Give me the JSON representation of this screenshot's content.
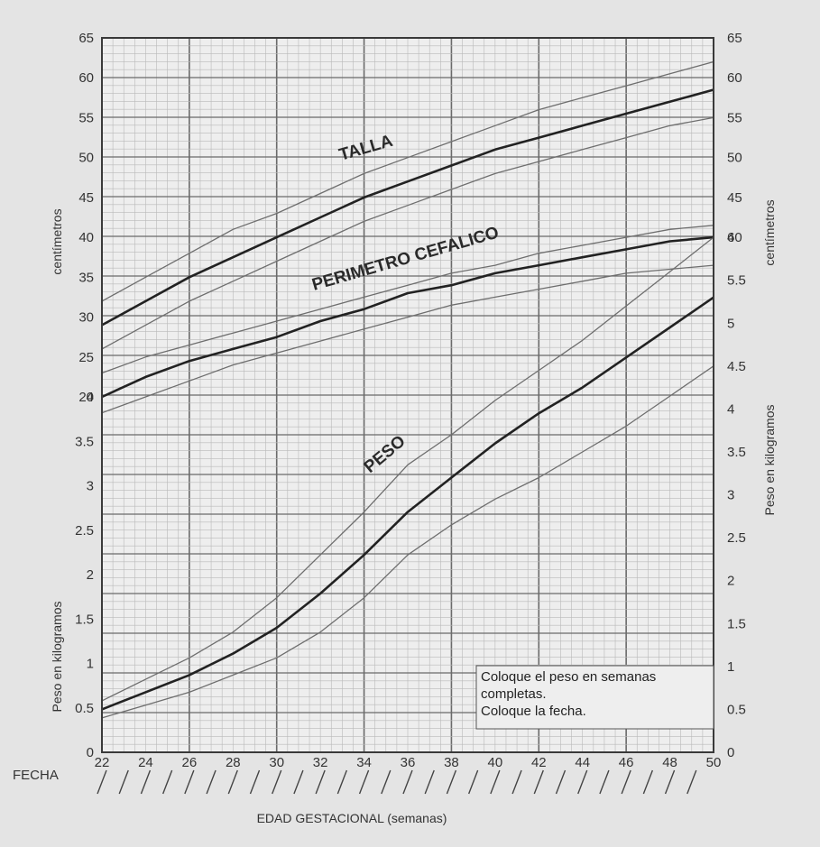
{
  "chart_data": {
    "type": "line",
    "title": "",
    "xlabel": "EDAD GESTACIONAL (semanas)",
    "x_row_label": "FECHA",
    "xlim": [
      22,
      50
    ],
    "x_ticks": [
      "22",
      "24",
      "26",
      "28",
      "30",
      "32",
      "34",
      "36",
      "38",
      "40",
      "42",
      "44",
      "46",
      "48",
      "50"
    ],
    "left_axis_top": {
      "label": "centímetros",
      "range": [
        20,
        65
      ],
      "ticks": [
        "20",
        "25",
        "30",
        "35",
        "40",
        "45",
        "50",
        "55",
        "60",
        "65"
      ]
    },
    "left_axis_bottom": {
      "label": "Peso en kilogramos",
      "range": [
        0,
        4
      ],
      "ticks": [
        "0",
        "0.5",
        "1",
        "1.5",
        "2",
        "2.5",
        "3",
        "3.5",
        "4"
      ]
    },
    "right_axis_top": {
      "label": "centímetros",
      "range": [
        40,
        65
      ],
      "ticks": [
        "40",
        "45",
        "50",
        "55",
        "60",
        "65"
      ]
    },
    "right_axis_bottom": {
      "label": "Peso en kilogramos",
      "range": [
        0,
        6
      ],
      "ticks": [
        "0",
        "0.5",
        "1",
        "1.5",
        "2",
        "2.5",
        "3",
        "3.5",
        "4",
        "4.5",
        "5",
        "5.5",
        "6"
      ]
    },
    "curve_labels": {
      "talla": "TALLA",
      "perimetro": "PERIMETRO CEFALICO",
      "peso": "PESO"
    },
    "series": [
      {
        "group": "talla",
        "role": "upper",
        "x": [
          22,
          24,
          26,
          28,
          30,
          32,
          34,
          36,
          38,
          40,
          42,
          44,
          46,
          48,
          50
        ],
        "values": [
          32,
          35,
          38,
          41,
          43,
          45.5,
          48,
          50,
          52,
          54,
          56,
          57.5,
          59,
          60.5,
          62
        ]
      },
      {
        "group": "talla",
        "role": "median",
        "x": [
          22,
          24,
          26,
          28,
          30,
          32,
          34,
          36,
          38,
          40,
          42,
          44,
          46,
          48,
          50
        ],
        "values": [
          29,
          32,
          35,
          37.5,
          40,
          42.5,
          45,
          47,
          49,
          51,
          52.5,
          54,
          55.5,
          57,
          58.5
        ]
      },
      {
        "group": "talla",
        "role": "lower",
        "x": [
          22,
          24,
          26,
          28,
          30,
          32,
          34,
          36,
          38,
          40,
          42,
          44,
          46,
          48,
          50
        ],
        "values": [
          26,
          29,
          32,
          34.5,
          37,
          39.5,
          42,
          44,
          46,
          48,
          49.5,
          51,
          52.5,
          54,
          55
        ]
      },
      {
        "group": "perimetro",
        "role": "upper",
        "x": [
          22,
          24,
          26,
          28,
          30,
          32,
          34,
          36,
          38,
          40,
          42,
          44,
          46,
          48,
          50
        ],
        "values": [
          23,
          25,
          26.5,
          28,
          29.5,
          31,
          32.5,
          34,
          35.5,
          36.5,
          38,
          39,
          40,
          41,
          41.5
        ]
      },
      {
        "group": "perimetro",
        "role": "median",
        "x": [
          22,
          24,
          26,
          28,
          30,
          32,
          34,
          36,
          38,
          40,
          42,
          44,
          46,
          48,
          50
        ],
        "values": [
          20,
          22.5,
          24.5,
          26,
          27.5,
          29.5,
          31,
          33,
          34,
          35.5,
          36.5,
          37.5,
          38.5,
          39.5,
          40
        ]
      },
      {
        "group": "perimetro",
        "role": "lower",
        "x": [
          22,
          24,
          26,
          28,
          30,
          32,
          34,
          36,
          38,
          40,
          42,
          44,
          46,
          48,
          50
        ],
        "values": [
          18,
          20,
          22,
          24,
          25.5,
          27,
          28.5,
          30,
          31.5,
          32.5,
          33.5,
          34.5,
          35.5,
          36,
          36.5
        ]
      },
      {
        "group": "peso",
        "role": "upper",
        "x": [
          22,
          24,
          26,
          28,
          30,
          32,
          34,
          36,
          38,
          40,
          42,
          44,
          46,
          48,
          50
        ],
        "values": [
          0.6,
          0.85,
          1.1,
          1.4,
          1.8,
          2.3,
          2.8,
          3.35,
          3.7,
          4.1,
          4.45,
          4.8,
          5.2,
          5.6,
          6
        ]
      },
      {
        "group": "peso",
        "role": "median",
        "x": [
          22,
          24,
          26,
          28,
          30,
          32,
          34,
          36,
          38,
          40,
          42,
          44,
          46,
          48,
          50
        ],
        "values": [
          0.5,
          0.7,
          0.9,
          1.15,
          1.45,
          1.85,
          2.3,
          2.8,
          3.2,
          3.6,
          3.95,
          4.25,
          4.6,
          4.95,
          5.3
        ]
      },
      {
        "group": "peso",
        "role": "lower",
        "x": [
          22,
          24,
          26,
          28,
          30,
          32,
          34,
          36,
          38,
          40,
          42,
          44,
          46,
          48,
          50
        ],
        "values": [
          0.4,
          0.55,
          0.7,
          0.9,
          1.1,
          1.4,
          1.8,
          2.3,
          2.65,
          2.95,
          3.2,
          3.5,
          3.8,
          4.15,
          4.5
        ]
      }
    ],
    "note_lines": [
      "Coloque el peso en semanas",
      "completas.",
      "Coloque la fecha."
    ],
    "grid": true,
    "colors": {
      "median": "#222222",
      "percentile": "#6e6e6e",
      "grid_major": "#6a6a6a",
      "grid_minor": "#b9b9b9"
    }
  }
}
